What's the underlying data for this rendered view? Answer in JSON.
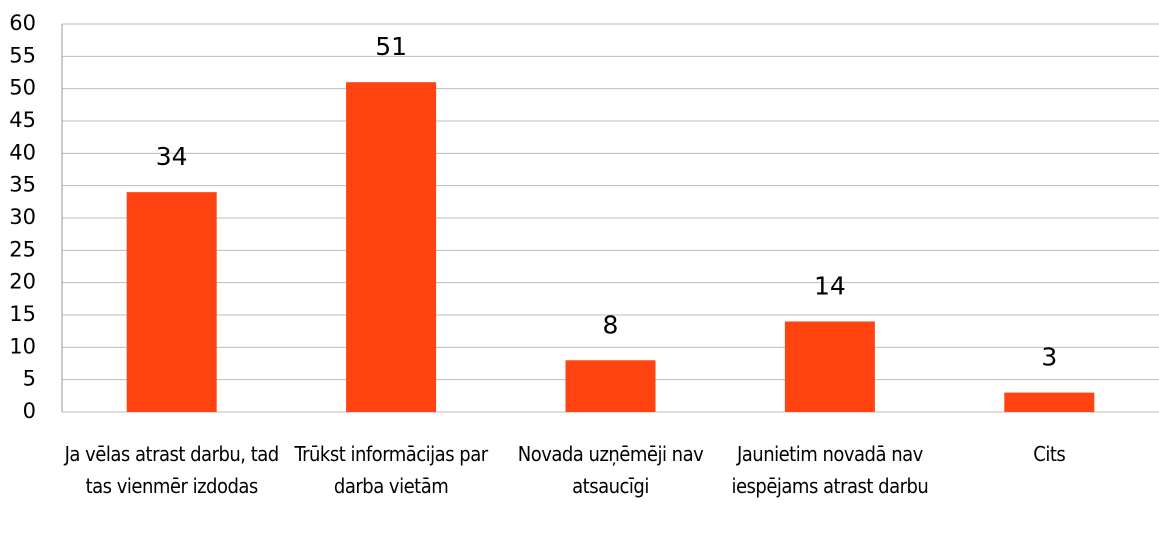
{
  "chart_data": {
    "type": "bar",
    "categories": [
      "Ja vēlas atrast darbu, tad tas vienmēr izdodas",
      "Trūkst informācijas par darba vietām",
      "Novada uzņēmēji nav atsaucīgi",
      "Jaunietim novadā nav iespējams atrast darbu",
      "Cits"
    ],
    "values": [
      34,
      51,
      8,
      14,
      3
    ],
    "color": "#ff4411",
    "ylim": [
      0,
      60
    ],
    "yticks": [
      0,
      5,
      10,
      15,
      20,
      25,
      30,
      35,
      40,
      45,
      50,
      55,
      60
    ],
    "grid": true
  }
}
